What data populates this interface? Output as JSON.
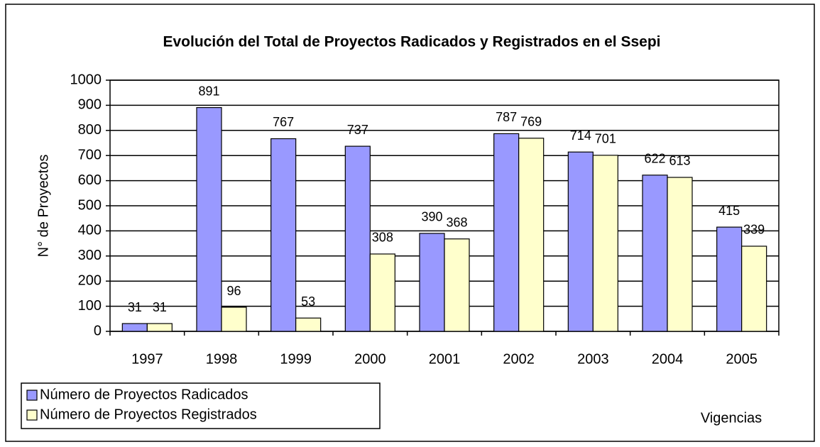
{
  "chart_data": {
    "type": "bar",
    "title": "Evolución del Total de Proyectos Radicados y Registrados en el Ssepi",
    "y_label": "N° de Proyectos",
    "x_label": "Vigencias",
    "categories": [
      "1997",
      "1998",
      "1999",
      "2000",
      "2001",
      "2002",
      "2003",
      "2004",
      "2005"
    ],
    "series": [
      {
        "name": "Número de Proyectos Radicados",
        "color": "#9999ff",
        "values": [
          31,
          891,
          767,
          737,
          390,
          787,
          714,
          622,
          415
        ]
      },
      {
        "name": "Número de Proyectos Registrados",
        "color": "#ffffcc",
        "values": [
          31,
          96,
          53,
          308,
          368,
          769,
          701,
          613,
          339
        ]
      }
    ],
    "ylim": [
      0,
      1000
    ],
    "yticks": [
      0,
      100,
      200,
      300,
      400,
      500,
      600,
      700,
      800,
      900,
      1000
    ],
    "grid": true,
    "legend": "bottom-left"
  }
}
